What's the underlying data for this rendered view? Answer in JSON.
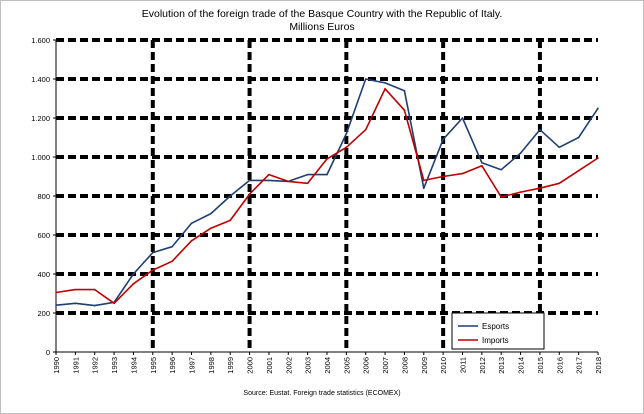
{
  "chart_data": {
    "type": "line",
    "title": "Evolution of the foreign trade of the Basque Country with the Republic of  Italy.",
    "subtitle": "Millions Euros",
    "source": "Source: Eustat. Foreign trade statistics (ECOMEX)",
    "xlabel": "",
    "ylabel": "",
    "ylim": [
      0,
      1600
    ],
    "y_ticks": [
      0,
      200,
      400,
      600,
      800,
      1000,
      1200,
      1400,
      1600
    ],
    "y_tick_labels": [
      "0",
      "200",
      "400",
      "600",
      "800",
      "1.000",
      "1.200",
      "1.400",
      "1.600"
    ],
    "x": [
      "1990",
      "1991",
      "1992",
      "1993",
      "1994",
      "1995",
      "1996",
      "1997",
      "1998",
      "1999",
      "2000",
      "2001",
      "2002",
      "2003",
      "2004",
      "2005",
      "2006",
      "2007",
      "2008",
      "2009",
      "2010",
      "2011",
      "2012",
      "2013",
      "2014",
      "2015",
      "2016",
      "2017",
      "2018"
    ],
    "vertical_gridlines_at": [
      "1995",
      "2000",
      "2005",
      "2010",
      "2015"
    ],
    "legend_position": "bottom-right",
    "grid": true,
    "series": [
      {
        "name": "Esports",
        "color": "#1f3f73",
        "values": [
          240,
          250,
          238,
          255,
          400,
          510,
          540,
          660,
          710,
          800,
          880,
          880,
          875,
          910,
          910,
          1120,
          1400,
          1380,
          1340,
          840,
          1090,
          1200,
          970,
          935,
          1020,
          1140,
          1050,
          1100,
          1250
        ]
      },
      {
        "name": "Imports",
        "color": "#c00000",
        "values": [
          305,
          320,
          320,
          250,
          350,
          420,
          465,
          570,
          635,
          675,
          810,
          910,
          875,
          865,
          990,
          1050,
          1140,
          1350,
          1240,
          880,
          900,
          915,
          955,
          795,
          820,
          840,
          865,
          930,
          995
        ]
      }
    ]
  }
}
